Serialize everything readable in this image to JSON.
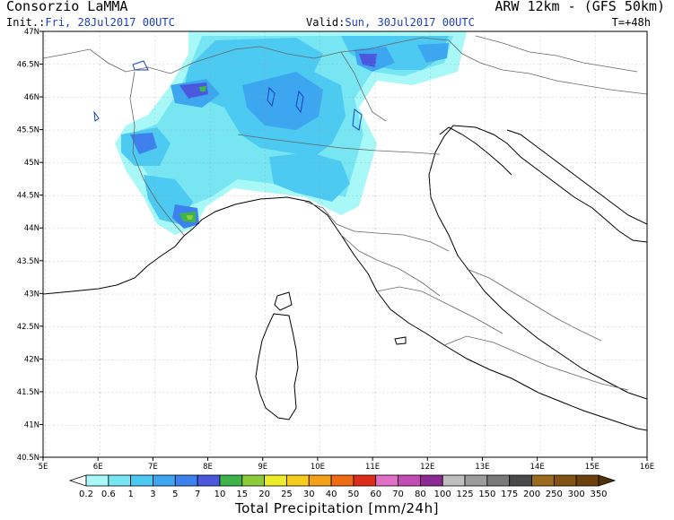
{
  "header": {
    "org": "Consorzio LaMMA",
    "model": "ARW 12km - (GFS 50km)",
    "init_label": "Init.:",
    "init_value": "Fri, 28Jul2017 00UTC",
    "valid_label": "Valid:",
    "valid_value": "Sun, 30Jul2017 00UTC",
    "step": "T=+48h"
  },
  "axes": {
    "lat_labels": [
      "47N",
      "46.5N",
      "46N",
      "45.5N",
      "45N",
      "44.5N",
      "44N",
      "43.5N",
      "43N",
      "42.5N",
      "42N",
      "41.5N",
      "41N",
      "40.5N"
    ],
    "lon_labels": [
      "5E",
      "6E",
      "7E",
      "8E",
      "9E",
      "10E",
      "11E",
      "12E",
      "13E",
      "14E",
      "15E",
      "16E"
    ]
  },
  "colorbar": {
    "title": "Total Precipitation [mm/24h]",
    "levels": [
      "0.2",
      "0.6",
      "1",
      "3",
      "5",
      "7",
      "10",
      "15",
      "20",
      "25",
      "30",
      "40",
      "50",
      "60",
      "70",
      "80",
      "100",
      "125",
      "150",
      "175",
      "200",
      "250",
      "300",
      "350"
    ],
    "colors": [
      "#ffffff",
      "#a8f8f8",
      "#78e6f2",
      "#4ccaf2",
      "#3ca6f0",
      "#3e80ec",
      "#4a58de",
      "#3eb44a",
      "#8ccc3a",
      "#ecec2a",
      "#f6cc1e",
      "#f4a018",
      "#ee6c14",
      "#dc2c1c",
      "#e270c8",
      "#c44cb6",
      "#8c2a94",
      "#bebebe",
      "#9c9c9c",
      "#7a7a7a",
      "#4a4a4a",
      "#9c6a1c",
      "#825214",
      "#6c400c",
      "#52300a"
    ]
  }
}
